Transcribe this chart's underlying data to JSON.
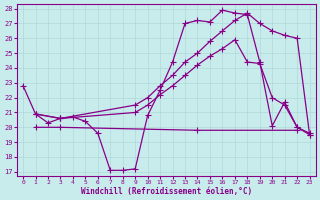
{
  "xlabel": "Windchill (Refroidissement éolien,°C)",
  "ylim": [
    17,
    28
  ],
  "xlim": [
    0,
    23
  ],
  "yticks": [
    17,
    18,
    19,
    20,
    21,
    22,
    23,
    24,
    25,
    26,
    27,
    28
  ],
  "xticks": [
    0,
    1,
    2,
    3,
    4,
    5,
    6,
    7,
    8,
    9,
    10,
    11,
    12,
    13,
    14,
    15,
    16,
    17,
    18,
    19,
    20,
    21,
    22,
    23
  ],
  "bg_color": "#c8ecec",
  "grid_color": "#b0d8d8",
  "line_color": "#880088",
  "line1_x": [
    0,
    1,
    2,
    3,
    4,
    5,
    6,
    7,
    8,
    9,
    10,
    11,
    12,
    13,
    14,
    15,
    16,
    17,
    18,
    19,
    20,
    21,
    22,
    23
  ],
  "line1_y": [
    22.8,
    20.9,
    20.3,
    20.6,
    20.7,
    20.4,
    19.6,
    17.1,
    17.1,
    17.2,
    20.8,
    22.5,
    24.4,
    27.0,
    27.2,
    27.1,
    27.9,
    27.7,
    27.6,
    24.4,
    20.1,
    21.7,
    20.0,
    19.6
  ],
  "line2_x": [
    1,
    3,
    14,
    22
  ],
  "line2_y": [
    20.0,
    20.0,
    19.8,
    19.8
  ],
  "line3_x": [
    1,
    3,
    9,
    10,
    11,
    12,
    13,
    14,
    15,
    16,
    17,
    18,
    19,
    20,
    21,
    22,
    23
  ],
  "line3_y": [
    20.9,
    20.6,
    21.5,
    22.0,
    22.8,
    23.5,
    24.4,
    25.0,
    25.8,
    26.5,
    27.2,
    27.7,
    27.0,
    26.5,
    26.2,
    26.0,
    19.5
  ],
  "line4_x": [
    1,
    3,
    9,
    10,
    11,
    12,
    13,
    14,
    15,
    16,
    17,
    18,
    19,
    20,
    21,
    22,
    23
  ],
  "line4_y": [
    20.9,
    20.6,
    21.0,
    21.5,
    22.2,
    22.8,
    23.5,
    24.2,
    24.8,
    25.3,
    25.9,
    24.4,
    24.3,
    22.0,
    21.5,
    20.0,
    19.5
  ]
}
